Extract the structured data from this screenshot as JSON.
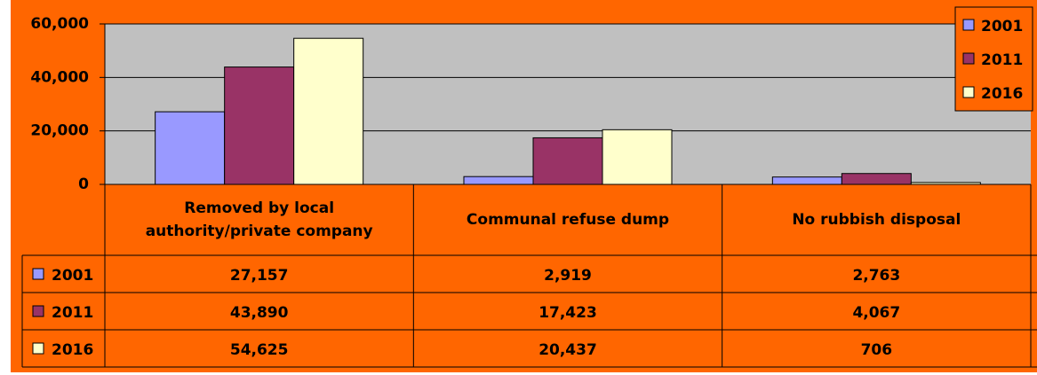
{
  "chart_data": {
    "type": "bar",
    "categories": [
      "Removed by local authority/private company",
      "Communal refuse dump",
      "No rubbish disposal"
    ],
    "series": [
      {
        "name": "2001",
        "color": "#9999ff",
        "values": [
          27157,
          2919,
          2763
        ],
        "value_labels": [
          "27,157",
          "2,919",
          "2,763"
        ]
      },
      {
        "name": "2011",
        "color": "#993366",
        "values": [
          43890,
          17423,
          4067
        ],
        "value_labels": [
          "43,890",
          "17,423",
          "4,067"
        ]
      },
      {
        "name": "2016",
        "color": "#ffffcc",
        "values": [
          54625,
          20437,
          706
        ],
        "value_labels": [
          "54,625",
          "20,437",
          "706"
        ]
      }
    ],
    "ylim": [
      0,
      60000
    ],
    "yticks": [
      0,
      {
        "value": 20000,
        "label": "20,000"
      },
      {
        "value": 40000,
        "label": "40,000"
      },
      {
        "value": 60000,
        "label": "60,000"
      }
    ],
    "grid": true,
    "legend": "top-right",
    "background": "#ff6600",
    "plot_background": "#c0c0c0"
  }
}
